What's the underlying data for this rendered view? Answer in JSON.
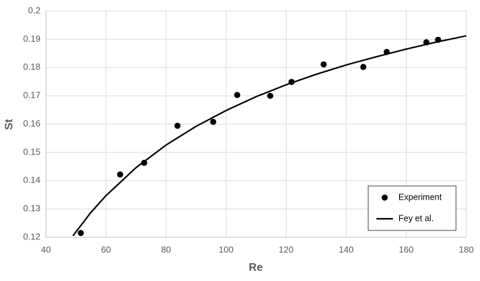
{
  "chart_data": {
    "type": "scatter",
    "x_label": "Re",
    "y_label": "St",
    "xlim": [
      40,
      180
    ],
    "xticks": [
      40,
      60,
      80,
      100,
      120,
      140,
      160,
      180
    ],
    "ylim": [
      0.12,
      0.2
    ],
    "yticks": [
      0.12,
      0.13,
      0.14,
      0.15,
      0.16,
      0.17,
      0.18,
      0.19,
      0.2
    ],
    "grid": true,
    "legend": "lower-right",
    "series": [
      {
        "name": "Experiment",
        "type": "scatter",
        "color": "#000000",
        "x": [
          51.6,
          64.7,
          72.7,
          83.8,
          95.7,
          103.7,
          114.7,
          121.8,
          132.5,
          145.7,
          153.5,
          166.7,
          170.6
        ],
        "values": [
          0.1215,
          0.1422,
          0.1463,
          0.1594,
          0.1608,
          0.1703,
          0.17,
          0.1749,
          0.1811,
          0.1802,
          0.1855,
          0.1889,
          0.1898
        ]
      },
      {
        "name": "Fey et al.",
        "type": "line",
        "color": "#000000",
        "x": [
          49,
          50,
          55,
          60,
          70,
          80,
          90,
          100,
          110,
          120,
          130,
          140,
          150,
          160,
          170,
          180
        ],
        "values": [
          0.1205,
          0.1219,
          0.1288,
          0.1347,
          0.1446,
          0.1526,
          0.1592,
          0.1648,
          0.1697,
          0.1739,
          0.1776,
          0.1809,
          0.1838,
          0.1865,
          0.189,
          0.1912
        ]
      }
    ]
  }
}
